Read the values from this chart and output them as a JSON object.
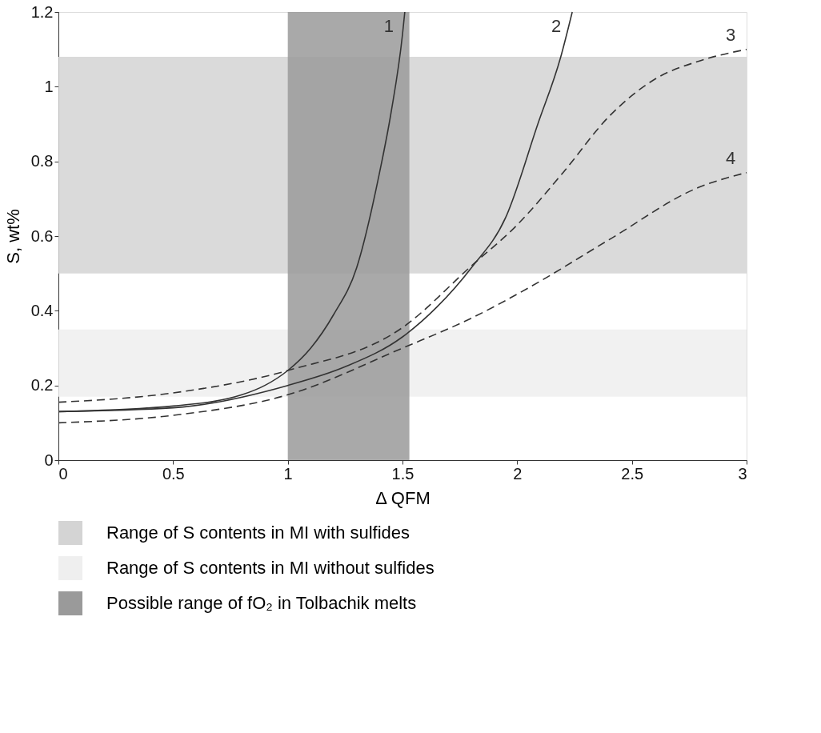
{
  "chart_data": {
    "type": "line",
    "xlabel": "Δ QFM",
    "ylabel": "S, wt%",
    "xlim": [
      0,
      3
    ],
    "ylim": [
      0,
      1.2
    ],
    "xticks": [
      0,
      0.5,
      1,
      1.5,
      2,
      2.5,
      3
    ],
    "yticks": [
      0,
      0.2,
      0.4,
      0.6,
      0.8,
      1,
      1.2
    ],
    "grid": false,
    "legend": "bottom",
    "marker": "none",
    "series": [
      {
        "name": "1",
        "color": "#333333",
        "line_style": "solid",
        "x": [
          0,
          0.5,
          0.8,
          0.9,
          1.0,
          1.1,
          1.2,
          1.3,
          1.4,
          1.45,
          1.5,
          1.51
        ],
        "values": [
          0.13,
          0.145,
          0.175,
          0.2,
          0.24,
          0.3,
          0.39,
          0.515,
          0.77,
          0.93,
          1.14,
          1.2
        ]
      },
      {
        "name": "2",
        "color": "#333333",
        "line_style": "solid",
        "x": [
          0,
          0.5,
          1.0,
          1.25,
          1.5,
          1.65,
          1.8,
          1.95,
          2.09,
          2.19,
          2.24
        ],
        "values": [
          0.13,
          0.14,
          0.2,
          0.25,
          0.33,
          0.41,
          0.515,
          0.65,
          0.9,
          1.08,
          1.2
        ]
      },
      {
        "name": "3",
        "color": "#333333",
        "line_style": "dashed",
        "x": [
          0,
          0.5,
          1.0,
          1.5,
          1.8,
          2.0,
          2.2,
          2.4,
          2.6,
          2.8,
          3.0
        ],
        "values": [
          0.155,
          0.18,
          0.24,
          0.355,
          0.52,
          0.63,
          0.77,
          0.92,
          1.02,
          1.07,
          1.1
        ]
      },
      {
        "name": "4",
        "color": "#333333",
        "line_style": "dashed",
        "x": [
          0,
          0.5,
          1.0,
          1.5,
          1.8,
          2.06,
          2.4,
          2.79,
          3.0
        ],
        "values": [
          0.1,
          0.12,
          0.175,
          0.3,
          0.38,
          0.465,
          0.59,
          0.73,
          0.77
        ]
      }
    ],
    "bands": [
      {
        "axis": "y",
        "from": 0.5,
        "to": 1.08,
        "label": "Range of S contents in MI with sulfides",
        "color": "#d4d4d4"
      },
      {
        "axis": "y",
        "from": 0.17,
        "to": 0.35,
        "label": "Range of S contents in MI without sulfides",
        "color": "#efefef"
      },
      {
        "axis": "x",
        "from": 1.0,
        "to": 1.53,
        "label": "Possible range of fO₂ in Tolbachik melts",
        "color": "#9a9a9a"
      }
    ]
  }
}
